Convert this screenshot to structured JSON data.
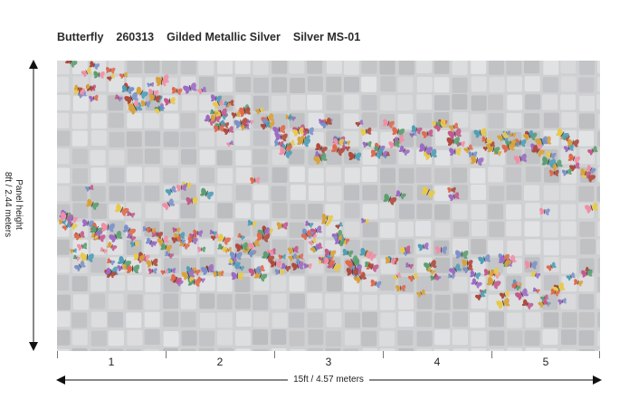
{
  "header": {
    "pattern_name": "Butterfly",
    "code": "260313",
    "finish": "Gilded Metallic Silver",
    "colorway": "Silver MS-01"
  },
  "dimensions": {
    "height_line1": "Panel height",
    "height_line2": "8ft / 2.44 meters",
    "width_label": "15ft  / 4.57 meters"
  },
  "panels": [
    "1",
    "2",
    "3",
    "4",
    "5"
  ],
  "colors": {
    "background": "#cfd0d2",
    "tile_light": "#e4e5e7",
    "tile_dark": "#b9babd",
    "arrow": "#111111",
    "butterflies": [
      "#e06a4f",
      "#d8a23c",
      "#7c92c9",
      "#5c9e70",
      "#c45a8c",
      "#9c6bc4",
      "#e8c94a",
      "#4f9fb8",
      "#b04a3c",
      "#ef8fa6"
    ]
  }
}
